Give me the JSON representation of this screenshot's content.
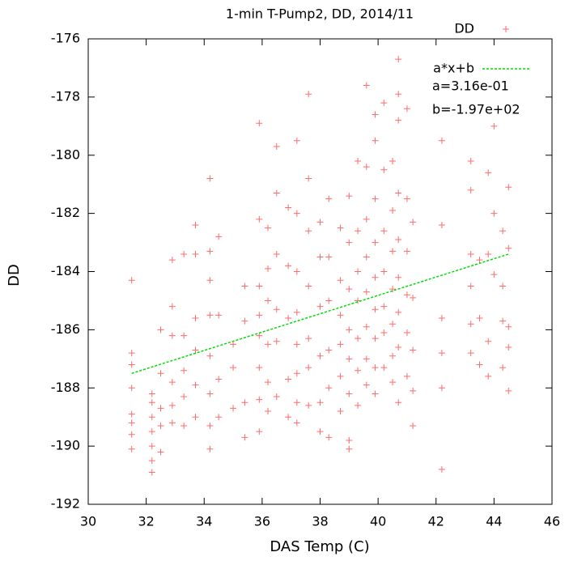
{
  "chart_data": {
    "type": "scatter",
    "title": "1-min T-Pump2, DD, 2014/11",
    "x_label": "DAS Temp (C)",
    "y_label": "DD",
    "xlim": [
      30,
      46
    ],
    "xticks": [
      30,
      32,
      34,
      36,
      38,
      40,
      42,
      44,
      46
    ],
    "ylim": [
      -192,
      -176
    ],
    "yticks": [
      -192,
      -190,
      -188,
      -186,
      -184,
      -182,
      -180,
      -178,
      -176
    ],
    "legend": "top-right",
    "annotations": [
      "a=3.16e-01",
      "b=-1.97e+02"
    ],
    "series": [
      {
        "name": "DD",
        "color": "#ff6b6b",
        "x": [
          31.5,
          31.5,
          31.5,
          31.5,
          31.5,
          31.5,
          31.5,
          31.5,
          32.2,
          32.2,
          32.2,
          32.2,
          32.2,
          32.2,
          32.2,
          32.5,
          32.5,
          32.5,
          32.5,
          32.5,
          32.9,
          32.9,
          32.9,
          32.9,
          32.9,
          32.9,
          33.3,
          33.3,
          33.3,
          33.3,
          33.3,
          33.7,
          33.7,
          33.7,
          33.7,
          33.7,
          33.7,
          34.2,
          34.2,
          34.2,
          34.2,
          34.2,
          34.2,
          34.2,
          34.2,
          34.5,
          34.5,
          34.5,
          34.5,
          35,
          35,
          35,
          35.4,
          35.4,
          35.4,
          35.4,
          35.9,
          35.9,
          35.9,
          35.9,
          35.9,
          35.9,
          35.9,
          35.9,
          36.2,
          36.2,
          36.2,
          36.2,
          36.2,
          36.2,
          36.5,
          36.5,
          36.5,
          36.5,
          36.5,
          36.5,
          36.9,
          36.9,
          36.9,
          36.9,
          36.9,
          37.2,
          37.2,
          37.2,
          37.2,
          37.2,
          37.2,
          37.2,
          37.2,
          37.6,
          37.6,
          37.6,
          37.6,
          37.6,
          37.6,
          37.6,
          38,
          38,
          38,
          38,
          38,
          38,
          38.3,
          38.3,
          38.3,
          38.3,
          38.3,
          38.3,
          38.7,
          38.7,
          38.7,
          38.7,
          38.7,
          38.7,
          39,
          39,
          39,
          39,
          39,
          39,
          39,
          39,
          39.3,
          39.3,
          39.3,
          39.3,
          39.3,
          39.3,
          39.3,
          39.6,
          39.6,
          39.6,
          39.6,
          39.6,
          39.6,
          39.6,
          39.6,
          39.9,
          39.9,
          39.9,
          39.9,
          39.9,
          39.9,
          39.9,
          39.9,
          39.9,
          40.2,
          40.2,
          40.2,
          40.2,
          40.2,
          40.2,
          40.2,
          40.5,
          40.5,
          40.5,
          40.5,
          40.5,
          40.5,
          40.5,
          40.7,
          40.7,
          40.7,
          40.7,
          40.7,
          40.7,
          40.7,
          40.7,
          40.7,
          41,
          41,
          41,
          41,
          41,
          41,
          41.2,
          41.2,
          41.2,
          41.2,
          41.2,
          42.2,
          42.2,
          42.2,
          42.2,
          42.2,
          42.2,
          43.2,
          43.2,
          43.2,
          43.2,
          43.2,
          43.2,
          43.5,
          43.5,
          43.5,
          43.8,
          43.8,
          43.8,
          43.8,
          44,
          44,
          44,
          44.3,
          44.3,
          44.3,
          44.3,
          44.5,
          44.5,
          44.5,
          44.5,
          44.5
        ],
        "values": [
          -184.3,
          -186.8,
          -187.2,
          -188,
          -188.9,
          -189.2,
          -189.6,
          -190.1,
          -188.2,
          -188.5,
          -189,
          -189.5,
          -190,
          -190.5,
          -190.9,
          -186,
          -187.5,
          -188.7,
          -189.3,
          -190.2,
          -183.6,
          -185.2,
          -186.2,
          -187.8,
          -188.6,
          -189.2,
          -183.4,
          -186.2,
          -187.4,
          -188.3,
          -189.3,
          -182.4,
          -183.4,
          -185.6,
          -186.7,
          -187.9,
          -189,
          -180.8,
          -183.3,
          -184.3,
          -185.5,
          -186.9,
          -188.2,
          -189.3,
          -190.1,
          -182.8,
          -185.5,
          -187.7,
          -189,
          -186.5,
          -187.3,
          -188.7,
          -184.5,
          -185.7,
          -188.5,
          -189.7,
          -178.9,
          -182.2,
          -184.5,
          -185.5,
          -186.2,
          -187.3,
          -188.4,
          -189.5,
          -182.5,
          -183.9,
          -185,
          -186.5,
          -187.8,
          -188.8,
          -179.7,
          -181.3,
          -183.4,
          -185.3,
          -186.4,
          -188.3,
          -181.8,
          -183.8,
          -185.6,
          -187.7,
          -189,
          -179.5,
          -182,
          -184,
          -185.4,
          -186.5,
          -187.5,
          -188.5,
          -189.2,
          -177.9,
          -180.8,
          -182.6,
          -184.5,
          -186.3,
          -187.3,
          -188.6,
          -182.3,
          -183.5,
          -185.2,
          -186.9,
          -188.5,
          -189.5,
          -181.5,
          -183.5,
          -185,
          -186.7,
          -188,
          -189.7,
          -182.5,
          -184.3,
          -185.5,
          -186.5,
          -187.6,
          -188.8,
          -181.4,
          -183,
          -184.6,
          -186,
          -187,
          -188.2,
          -189.8,
          -190.1,
          -180.2,
          -182.6,
          -184,
          -185,
          -186.3,
          -187.4,
          -188.6,
          -177.6,
          -180.4,
          -182.2,
          -183.5,
          -184.7,
          -185.9,
          -187,
          -187.9,
          -178.6,
          -179.5,
          -181.5,
          -183,
          -184.2,
          -185.3,
          -186.3,
          -187.3,
          -188.2,
          -178.2,
          -180.5,
          -182.6,
          -184,
          -185.2,
          -186.1,
          -187.3,
          -180.2,
          -181.9,
          -183.3,
          -184.6,
          -185.8,
          -186.9,
          -187.8,
          -176.7,
          -177.9,
          -178.8,
          -181.3,
          -182.9,
          -184.2,
          -185.4,
          -186.6,
          -188.5,
          -178.4,
          -181.5,
          -183.3,
          -184.8,
          -186.1,
          -187.6,
          -182.3,
          -184.9,
          -186.7,
          -188.1,
          -189.3,
          -179.5,
          -182.4,
          -185.6,
          -186.8,
          -188,
          -190.8,
          -180.2,
          -181.2,
          -183.4,
          -184.5,
          -185.8,
          -186.8,
          -183.6,
          -185.6,
          -187.2,
          -180.6,
          -183.4,
          -186.4,
          -187.6,
          -179,
          -182,
          -184.1,
          -182.6,
          -184.5,
          -185.7,
          -187.3,
          -181.1,
          -183.2,
          -185.9,
          -186.6,
          -188.1
        ]
      },
      {
        "name": "a*x+b",
        "color": "#00dd00",
        "style": "line",
        "dashed": true,
        "x": [
          31.5,
          44.5
        ],
        "values": [
          -187.5,
          -183.4
        ]
      }
    ]
  }
}
